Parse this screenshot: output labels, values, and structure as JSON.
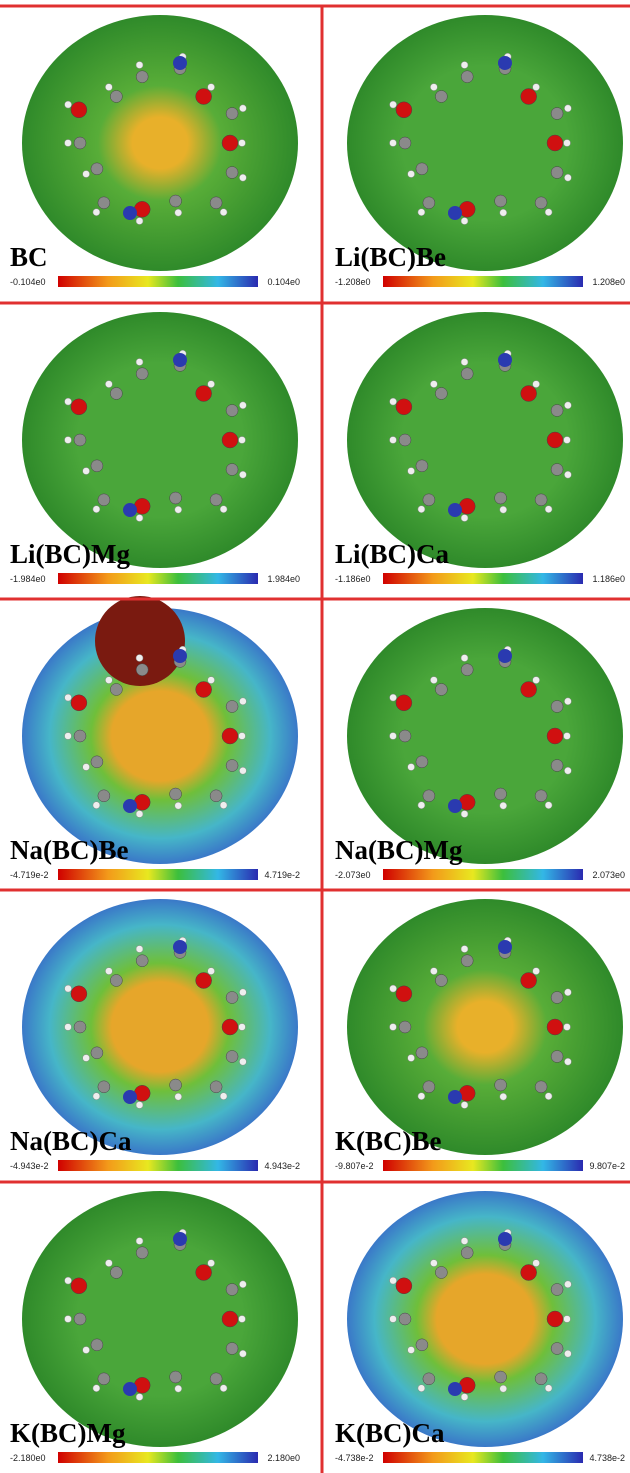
{
  "panels": [
    {
      "label": "BC",
      "scale_min": "-0.104e0",
      "scale_max": "0.104e0"
    },
    {
      "label": "Li(BC)Be",
      "scale_min": "-1.208e0",
      "scale_max": "1.208e0"
    },
    {
      "label": "Li(BC)Mg",
      "scale_min": "-1.984e0",
      "scale_max": "1.984e0"
    },
    {
      "label": "Li(BC)Ca",
      "scale_min": "-1.186e0",
      "scale_max": "1.186e0"
    },
    {
      "label": "Na(BC)Be",
      "scale_min": "-4.719e-2",
      "scale_max": "4.719e-2"
    },
    {
      "label": "Na(BC)Mg",
      "scale_min": "-2.073e0",
      "scale_max": "2.073e0"
    },
    {
      "label": "Na(BC)Ca",
      "scale_min": "-4.943e-2",
      "scale_max": "4.943e-2"
    },
    {
      "label": "K(BC)Be",
      "scale_min": "-9.807e-2",
      "scale_max": "9.807e-2"
    },
    {
      "label": "K(BC)Mg",
      "scale_min": "-2.180e0",
      "scale_max": "2.180e0"
    },
    {
      "label": "K(BC)Ca",
      "scale_min": "-4.738e-2",
      "scale_max": "4.738e-2"
    }
  ]
}
